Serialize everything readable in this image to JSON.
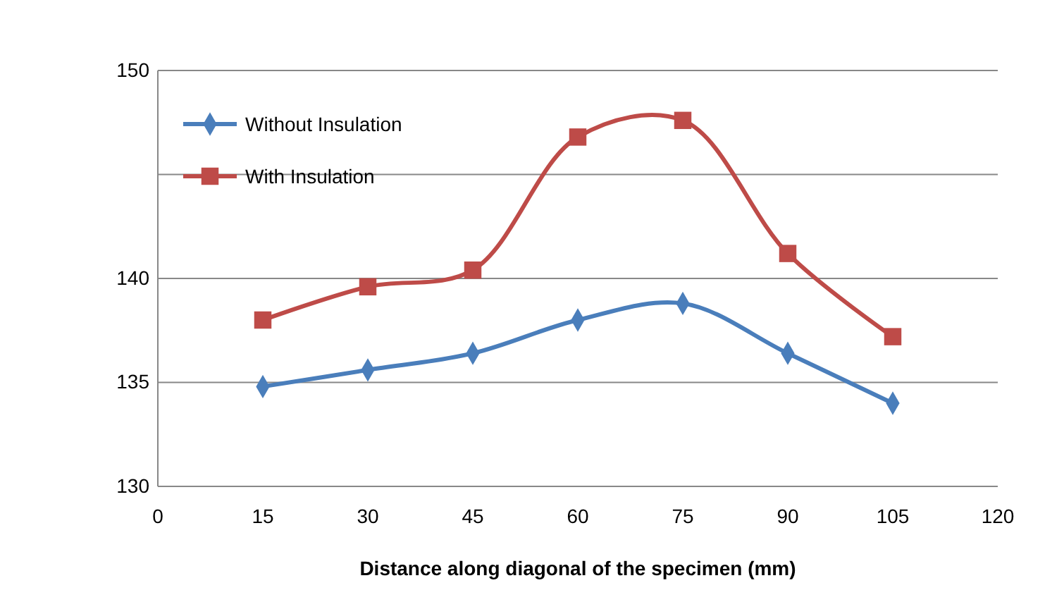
{
  "chart_data": {
    "type": "line",
    "xlabel": "Distance along diagonal of the specimen (mm)",
    "x": [
      15,
      30,
      45,
      60,
      75,
      90,
      105
    ],
    "series": [
      {
        "name": "Without Insulation",
        "color": "#4a7ebb",
        "marker": "diamond",
        "values": [
          134.8,
          135.6,
          136.4,
          138.0,
          138.8,
          136.4,
          134.0
        ]
      },
      {
        "name": "With Insulation",
        "color": "#be4b48",
        "marker": "square",
        "values": [
          138.0,
          139.6,
          140.4,
          146.8,
          147.6,
          141.2,
          137.2
        ]
      }
    ],
    "xlim": [
      0,
      120
    ],
    "xticks": [
      0,
      15,
      30,
      45,
      60,
      75,
      90,
      105,
      120
    ],
    "ylim": [
      130,
      150
    ],
    "yticks": [
      130,
      135,
      140,
      {
        "value": 145,
        "label": null
      },
      150
    ],
    "grid": "y",
    "legend": "top left"
  }
}
